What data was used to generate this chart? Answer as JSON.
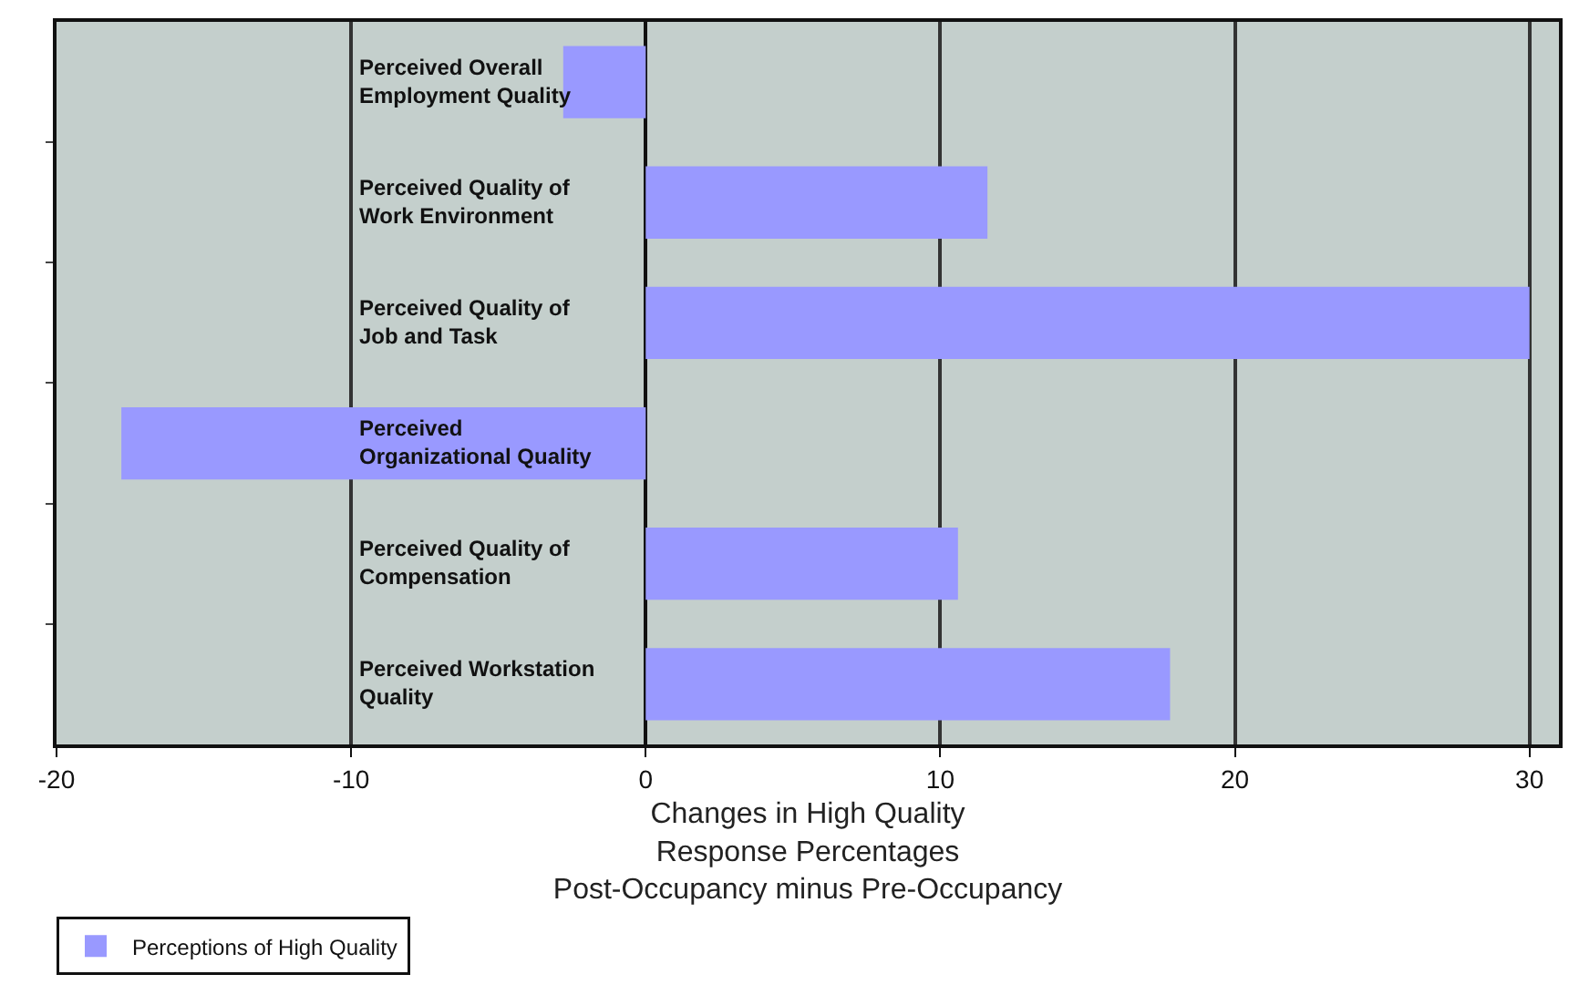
{
  "chart_data": {
    "type": "bar",
    "orientation": "horizontal",
    "xlabel": "Changes in High Quality\nResponse Percentages\nPost-Occupancy minus Pre-Occupancy",
    "categories": [
      "Perceived Overall\nEmployment Quality",
      "Perceived Quality of\nWork Environment",
      "Perceived Quality of\nJob and Task",
      "Perceived\nOrganizational Quality",
      "Perceived Quality of\nCompensation",
      "Perceived Workstation\nQuality"
    ],
    "series": [
      {
        "name": "Perceptions of High Quality",
        "color": "#9999ff",
        "values": [
          -2.8,
          11.6,
          30,
          -17.8,
          10.6,
          17.8
        ]
      }
    ],
    "xlim": [
      -20,
      31
    ],
    "xticks": [
      -20,
      -10,
      0,
      10,
      20,
      30
    ],
    "grid": "x",
    "legend": "bottom left"
  }
}
